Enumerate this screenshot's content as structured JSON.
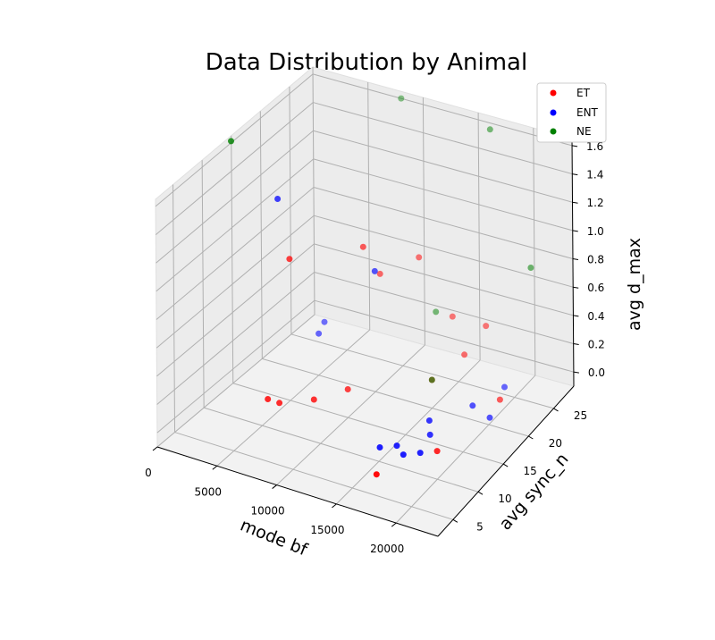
{
  "chart_data": {
    "type": "scatter",
    "dimensions": 3,
    "title": "Data Distribution by Animal",
    "xlabel": "mode bf",
    "ylabel": "avg sync_n",
    "zlabel": "avg d_max",
    "xlim": [
      0,
      23500
    ],
    "ylim": [
      2,
      29
    ],
    "zlim": [
      -0.1,
      1.65
    ],
    "xticks": [
      "0",
      "5000",
      "10000",
      "15000",
      "20000"
    ],
    "yticks": [
      "5",
      "10",
      "15",
      "20",
      "25"
    ],
    "zticks": [
      "0.0",
      "0.2",
      "0.4",
      "0.6",
      "0.8",
      "1.0",
      "1.2",
      "1.4",
      "1.6"
    ],
    "grid": true,
    "legend_position": "top-right",
    "series": [
      {
        "name": "ET",
        "color": "#ff0000",
        "points": [
          {
            "x": 5000,
            "y": 15,
            "z": 0.9
          },
          {
            "x": 5500,
            "y": 10,
            "z": 0.1
          },
          {
            "x": 6000,
            "y": 11,
            "z": 0.05
          },
          {
            "x": 9000,
            "y": 20,
            "z": 0.9
          },
          {
            "x": 8500,
            "y": 12,
            "z": 0.1
          },
          {
            "x": 10000,
            "y": 15,
            "z": 0.1
          },
          {
            "x": 9000,
            "y": 23,
            "z": 0.6
          },
          {
            "x": 11500,
            "y": 25,
            "z": 0.7
          },
          {
            "x": 15000,
            "y": 20,
            "z": 0.1
          },
          {
            "x": 14000,
            "y": 26,
            "z": 0.3
          },
          {
            "x": 16000,
            "y": 24,
            "z": 0.15
          },
          {
            "x": 17000,
            "y": 26,
            "z": 0.3
          },
          {
            "x": 21000,
            "y": 20,
            "z": 0.1
          },
          {
            "x": 20000,
            "y": 10,
            "z": 0.1
          },
          {
            "x": 17500,
            "y": 4,
            "z": 0.1
          }
        ]
      },
      {
        "name": "ENT",
        "color": "#0000ff",
        "points": [
          {
            "x": 4000,
            "y": 15,
            "z": 1.3
          },
          {
            "x": 3500,
            "y": 24,
            "z": 0.1
          },
          {
            "x": 4000,
            "y": 22,
            "z": 0.1
          },
          {
            "x": 10500,
            "y": 19,
            "z": 0.8
          },
          {
            "x": 17000,
            "y": 9,
            "z": 0.1
          },
          {
            "x": 18000,
            "y": 8,
            "z": 0.1
          },
          {
            "x": 20500,
            "y": 22,
            "z": 0.1
          },
          {
            "x": 19500,
            "y": 18,
            "z": 0.1
          },
          {
            "x": 18500,
            "y": 12,
            "z": 0.1
          },
          {
            "x": 21000,
            "y": 18,
            "z": 0.05
          },
          {
            "x": 18000,
            "y": 13,
            "z": 0.15
          },
          {
            "x": 19000,
            "y": 9,
            "z": 0.1
          },
          {
            "x": 16000,
            "y": 8,
            "z": 0.1
          }
        ]
      },
      {
        "name": "NE",
        "color": "#008000",
        "points": [
          {
            "x": 2000,
            "y": 11,
            "z": 1.8
          },
          {
            "x": 8000,
            "y": 29,
            "z": 1.6
          },
          {
            "x": 12500,
            "y": 26,
            "z": 0.3
          },
          {
            "x": 15000,
            "y": 20,
            "z": 0.1
          },
          {
            "x": 22000,
            "y": 24,
            "z": 0.9
          },
          {
            "x": 17500,
            "y": 26,
            "z": 1.7
          }
        ]
      }
    ]
  }
}
